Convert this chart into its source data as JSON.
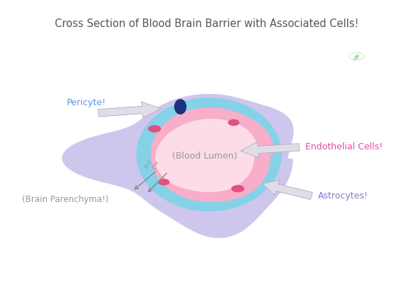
{
  "title": "Cross Section of Blood Brain Barrier with Associated Cells!",
  "title_fontsize": 10.5,
  "title_color": "#555555",
  "bg_color": "#ffffff",
  "astrocyte_color": "#c0b4e8",
  "tight_junction_color": "#7dd4e8",
  "endothelial_color": "#f8aec8",
  "lumen_color": "#fcdce8",
  "pericyte_nucleus_color": "#1a3080",
  "pink_dot_color": "#e05080",
  "label_pericyte": "Pericyte!",
  "label_pericyte_color": "#5599dd",
  "label_endothelial": "Endothelial Cells!",
  "label_endothelial_color": "#e050a0",
  "label_lumen": "(Blood Lumen)",
  "label_lumen_color": "#999999",
  "label_astrocyte": "Astrocytes!",
  "label_astrocyte_color": "#8878cc",
  "label_parenchyma": "(Brain Parenchyma!)",
  "label_parenchyma_color": "#999999",
  "arrow_fill": "#e0dde8",
  "arrow_edge": "#b0aabb"
}
